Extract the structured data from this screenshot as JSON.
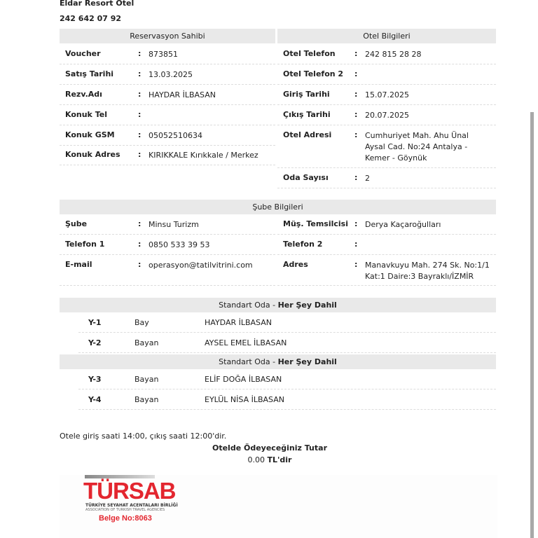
{
  "hotel": {
    "name": "Eldar Resort Otel",
    "phone": "242 642 07 92"
  },
  "reservation": {
    "title": "Reservasyon Sahibi",
    "rows": [
      {
        "label": "Voucher",
        "value": "873851"
      },
      {
        "label": "Satış Tarihi",
        "value": "13.03.2025"
      },
      {
        "label": "Rezv.Adı",
        "value": "HAYDAR İLBASAN"
      },
      {
        "label": "Konuk Tel",
        "value": ""
      },
      {
        "label": "Konuk GSM",
        "value": "05052510634"
      },
      {
        "label": "Konuk Adres",
        "value": "KIRIKKALE Kırıkkale / Merkez"
      }
    ]
  },
  "hotel_info": {
    "title": "Otel Bilgileri",
    "rows": [
      {
        "label": "Otel Telefon",
        "value": "242 815 28 28"
      },
      {
        "label": "Otel Telefon 2",
        "value": ""
      },
      {
        "label": "Giriş Tarihi",
        "value": "15.07.2025"
      },
      {
        "label": "Çıkış Tarihi",
        "value": "20.07.2025"
      },
      {
        "label": "Otel Adresi",
        "value": "Cumhuriyet Mah. Ahu Ünal Aysal Cad. No:24 Antalya - Kemer - Göynük"
      },
      {
        "label": "Oda Sayısı",
        "value": "2"
      }
    ]
  },
  "branch": {
    "title": "Şube Bilgileri",
    "rows": [
      {
        "label": "Şube",
        "value": "Minsu Turizm"
      },
      {
        "label": "Müş. Temsilcisi",
        "value": "Derya Kaçaroğulları"
      },
      {
        "label": "Telefon 1",
        "value": "0850 533 39 53"
      },
      {
        "label": "Telefon 2",
        "value": ""
      },
      {
        "label": "E-mail",
        "value": "operasyon@tatilvitrini.com"
      },
      {
        "label": "Adres",
        "value": "Manavkuyu Mah. 274 Sk. No:1/1 Kat:1 Daire:3 Bayraklı/İZMİR"
      }
    ]
  },
  "colon": ":",
  "rooms": [
    {
      "type": "Standart Oda - ",
      "board": "Her Şey Dahil",
      "guests": [
        {
          "id": "Y-1",
          "gender": "Bay",
          "name": "HAYDAR İLBASAN"
        },
        {
          "id": "Y-2",
          "gender": "Bayan",
          "name": "AYSEL EMEL İLBASAN"
        }
      ]
    },
    {
      "type": "Standart Oda - ",
      "board": "Her Şey Dahil",
      "guests": [
        {
          "id": "Y-3",
          "gender": "Bayan",
          "name": "ELİF DOĞA İLBASAN"
        },
        {
          "id": "Y-4",
          "gender": "Bayan",
          "name": "EYLÜL NİSA İLBASAN"
        }
      ]
    }
  ],
  "footer": {
    "note": "Otele giriş saati 14:00, çıkış saati 12:00'dir.",
    "amount_label": "Otelde Ödeyeceğiniz Tutar",
    "amount": "0.00 ",
    "currency": "TL'dir"
  },
  "logo": {
    "text": "TÜRSAB",
    "line1": "TÜRKİYE SEYAHAT ACENTALARI BİRLİĞİ",
    "line2": "ASSOCIATION OF TURKISH TRAVEL AGENCIES",
    "license": "Belge No:8063",
    "color": "#e3262f"
  }
}
